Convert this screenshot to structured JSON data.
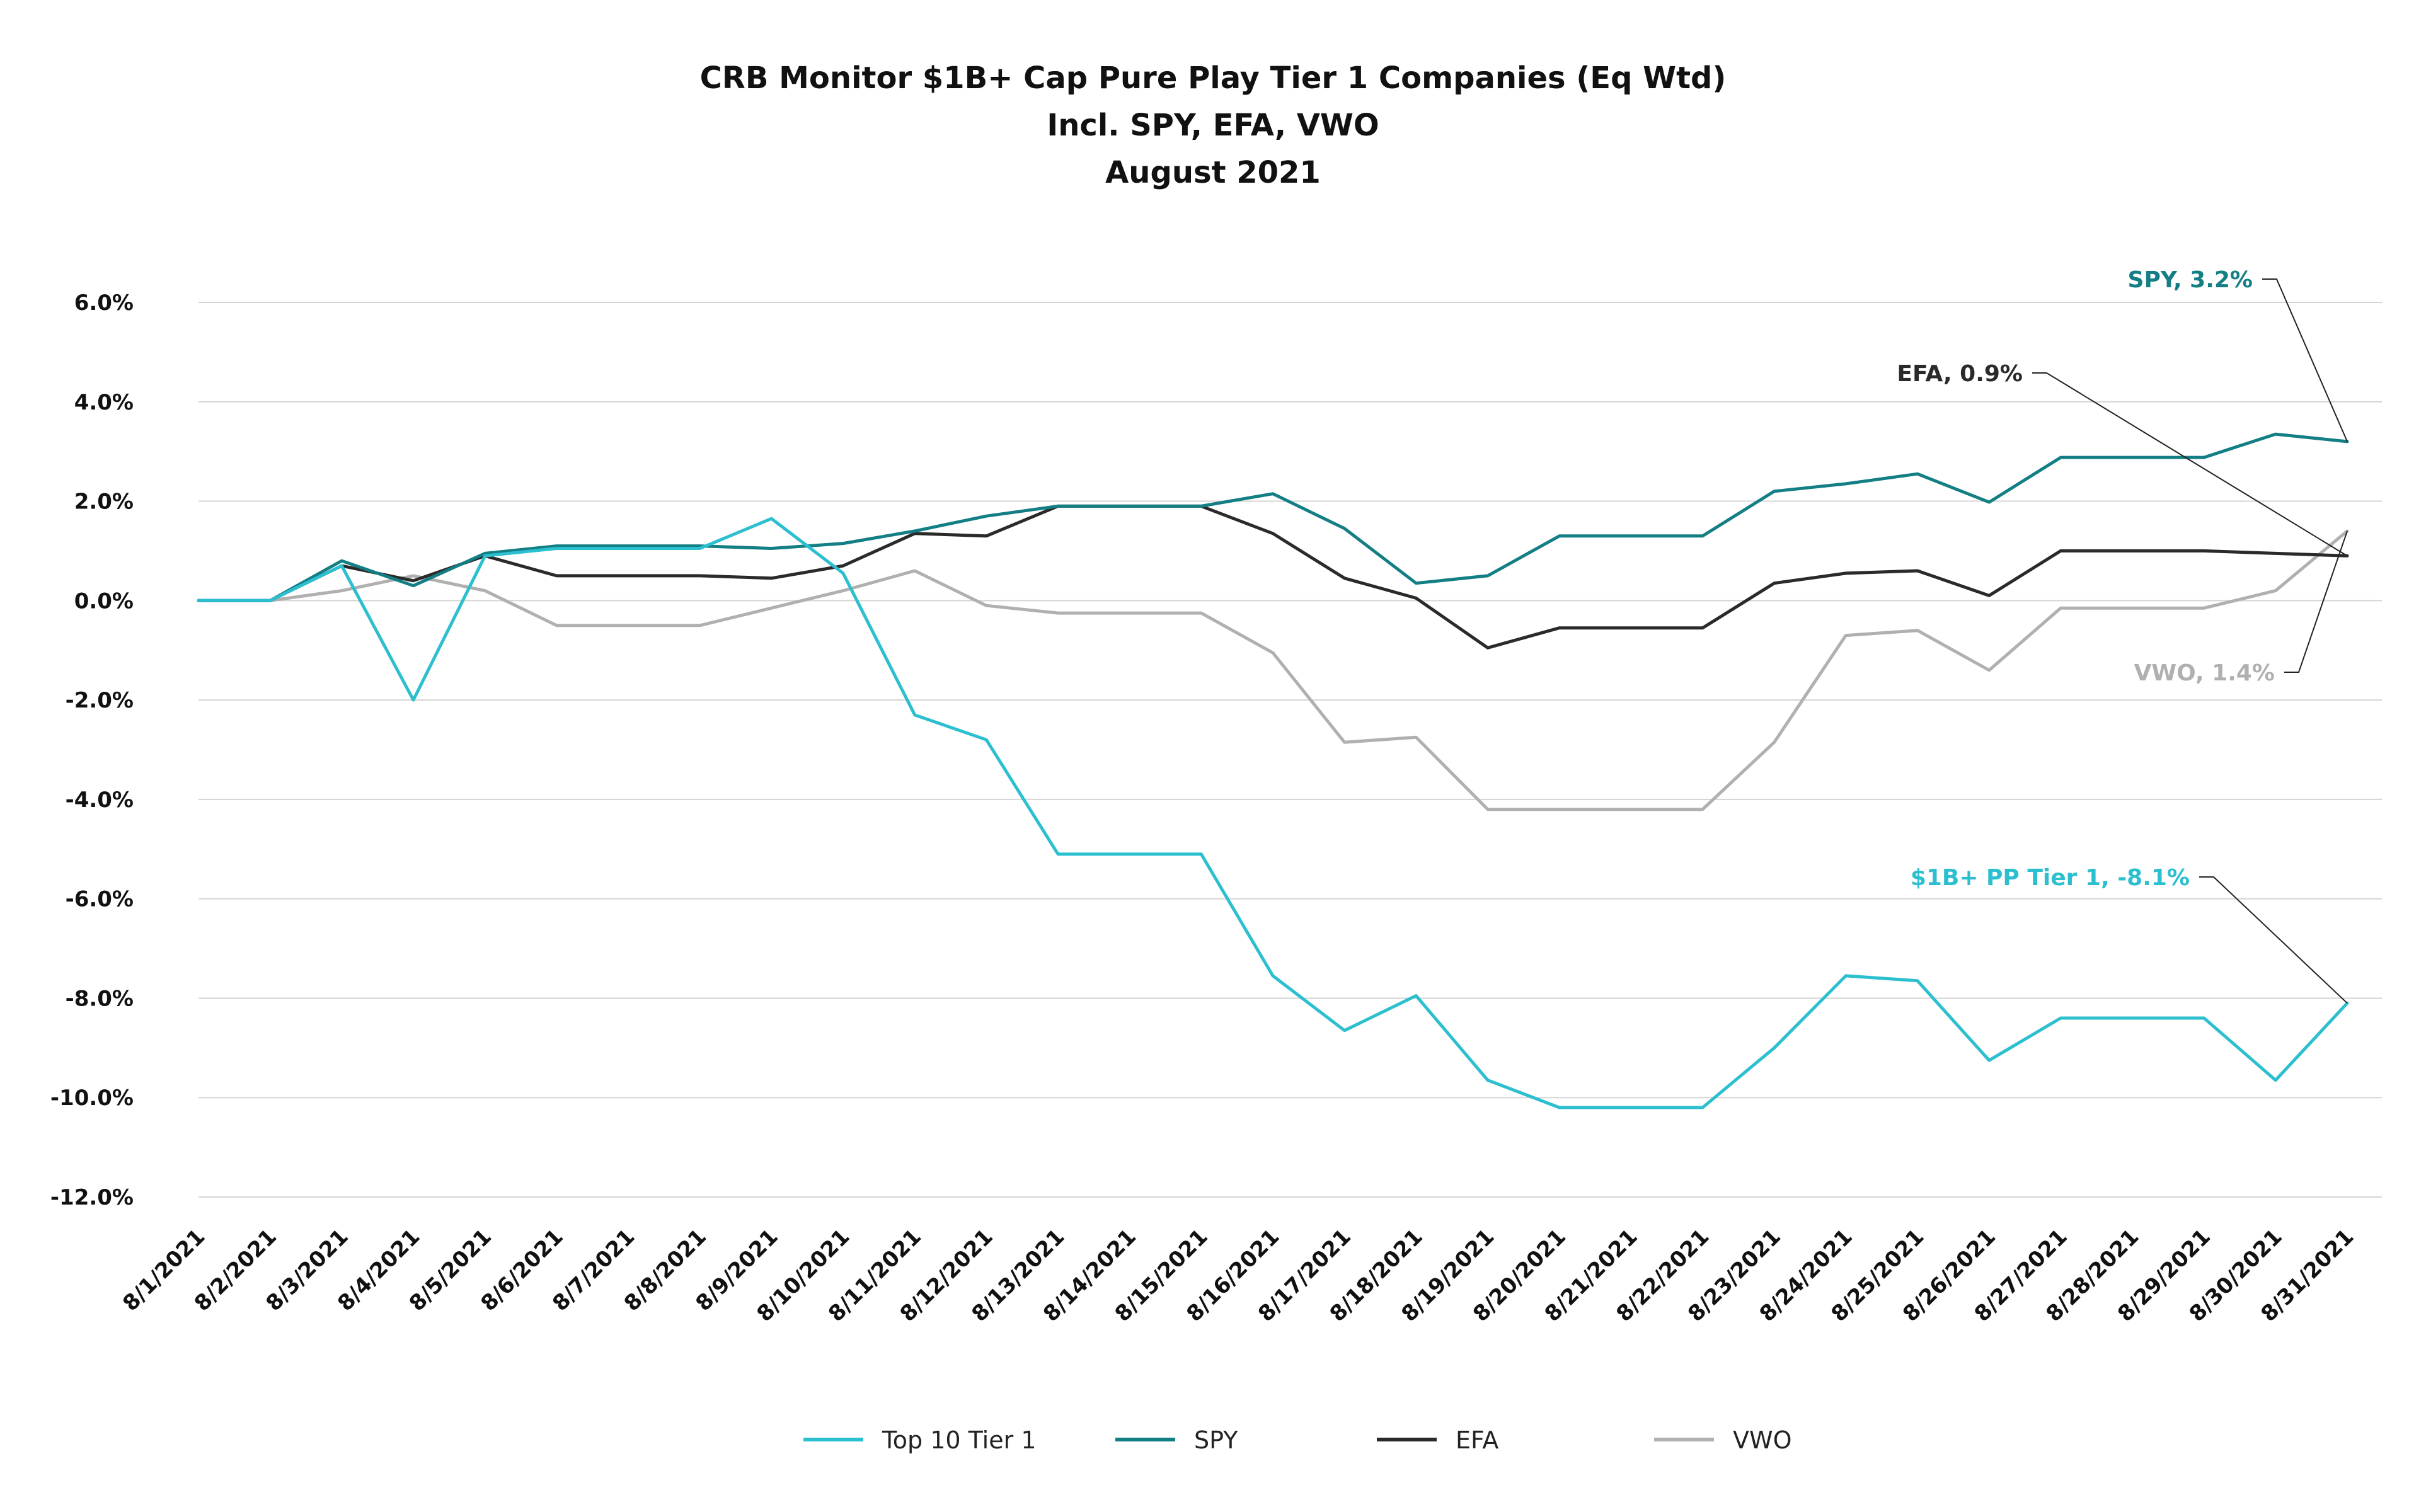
{
  "chart_data": {
    "type": "line",
    "title_lines": [
      "CRB Monitor $1B+ Cap Pure Play Tier 1 Companies (Eq Wtd)",
      "Incl. SPY, EFA, VWO",
      "August 2021"
    ],
    "xlabel": "",
    "ylabel": "",
    "categories": [
      "8/1/2021",
      "8/2/2021",
      "8/3/2021",
      "8/4/2021",
      "8/5/2021",
      "8/6/2021",
      "8/7/2021",
      "8/8/2021",
      "8/9/2021",
      "8/10/2021",
      "8/11/2021",
      "8/12/2021",
      "8/13/2021",
      "8/14/2021",
      "8/15/2021",
      "8/16/2021",
      "8/17/2021",
      "8/18/2021",
      "8/19/2021",
      "8/20/2021",
      "8/21/2021",
      "8/22/2021",
      "8/23/2021",
      "8/24/2021",
      "8/25/2021",
      "8/26/2021",
      "8/27/2021",
      "8/28/2021",
      "8/29/2021",
      "8/30/2021",
      "8/31/2021"
    ],
    "ylim": [
      -12,
      6
    ],
    "yticks": [
      6,
      4,
      2,
      0,
      -2,
      -4,
      -6,
      -8,
      -10,
      -12
    ],
    "ytick_labels": [
      "6.0%",
      "4.0%",
      "2.0%",
      "0.0%",
      "-2.0%",
      "-4.0%",
      "-6.0%",
      "-8.0%",
      "-10.0%",
      "-12.0%"
    ],
    "grid": "horizontal",
    "legend_position": "bottom",
    "series": [
      {
        "name": "Top 10 Tier 1",
        "color": "#2bbfcf",
        "values": [
          0,
          0,
          0.7,
          -2.0,
          0.9,
          1.05,
          1.05,
          1.05,
          1.65,
          0.55,
          -2.3,
          -2.8,
          -5.1,
          -5.1,
          -5.1,
          -7.55,
          -8.65,
          -7.95,
          -9.65,
          -10.2,
          -10.2,
          -10.2,
          -9.0,
          -7.55,
          -7.65,
          -9.25,
          -8.4,
          -8.4,
          -8.4,
          -9.65,
          -8.1
        ]
      },
      {
        "name": "SPY",
        "color": "#137f85",
        "values": [
          0,
          0,
          0.8,
          0.3,
          0.95,
          1.1,
          1.1,
          1.1,
          1.05,
          1.15,
          1.4,
          1.7,
          1.9,
          1.9,
          1.9,
          2.15,
          1.45,
          0.35,
          0.5,
          1.3,
          1.3,
          1.3,
          2.2,
          2.35,
          2.55,
          1.98,
          2.88,
          2.88,
          2.88,
          3.35,
          3.2
        ]
      },
      {
        "name": "EFA",
        "color": "#2a2a2a",
        "values": [
          0,
          0,
          0.7,
          0.4,
          0.9,
          0.5,
          0.5,
          0.5,
          0.45,
          0.7,
          1.35,
          1.3,
          1.9,
          1.9,
          1.9,
          1.35,
          0.45,
          0.05,
          -0.95,
          -0.55,
          -0.55,
          -0.55,
          0.35,
          0.55,
          0.6,
          0.1,
          1.0,
          1.0,
          1.0,
          0.95,
          0.9
        ]
      },
      {
        "name": "VWO",
        "color": "#b0b0b0",
        "values": [
          0,
          0,
          0.2,
          0.5,
          0.2,
          -0.5,
          -0.5,
          -0.5,
          -0.15,
          0.2,
          0.6,
          -0.1,
          -0.25,
          -0.25,
          -0.25,
          -1.05,
          -2.85,
          -2.75,
          -4.2,
          -4.2,
          -4.2,
          -4.2,
          -2.85,
          -0.7,
          -0.6,
          -1.4,
          -0.15,
          -0.15,
          -0.15,
          0.2,
          1.4
        ]
      }
    ],
    "annotations": [
      {
        "series": "SPY",
        "text": "SPY, 3.2%"
      },
      {
        "series": "EFA",
        "text": "EFA, 0.9%"
      },
      {
        "series": "VWO",
        "text": "VWO, 1.4%"
      },
      {
        "series": "Top 10 Tier 1",
        "text": "$1B+ PP Tier 1, -8.1%"
      }
    ]
  }
}
